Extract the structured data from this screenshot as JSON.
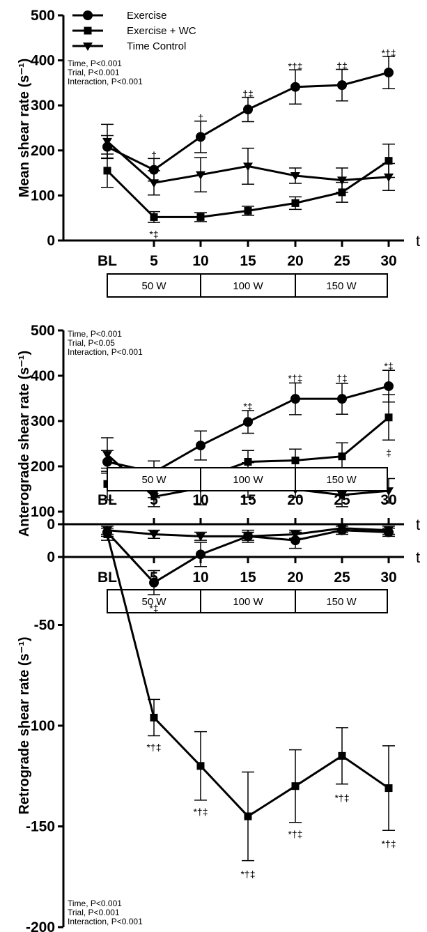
{
  "chart_data": [
    {
      "type": "line",
      "ylabel": "Mean shear rate (s⁻¹)",
      "xunit": "t",
      "ylim": [
        0,
        500
      ],
      "yticks": [
        0,
        100,
        200,
        300,
        400,
        500
      ],
      "categories": [
        "BL",
        "5",
        "10",
        "15",
        "20",
        "25",
        "30"
      ],
      "stats": [
        "Time, P<0.001",
        "Trial, P<0.001",
        "Interaction, P<0.001"
      ],
      "legend": {
        "placement": "top-left",
        "entries": [
          "Exercise",
          "Exercise + WC",
          "Time Control"
        ]
      },
      "stages": [
        "50 W",
        "100 W",
        "150 W"
      ],
      "stages_position": "below",
      "series": [
        {
          "name": "Exercise",
          "marker": "circle",
          "values": [
            208,
            157,
            230,
            291,
            341,
            345,
            373
          ],
          "err": [
            25,
            25,
            35,
            27,
            38,
            35,
            36
          ]
        },
        {
          "name": "Exercise + WC",
          "marker": "square",
          "values": [
            155,
            52,
            52,
            66,
            83,
            107,
            177
          ],
          "err": [
            37,
            12,
            10,
            10,
            14,
            22,
            37
          ]
        },
        {
          "name": "Time Control",
          "marker": "triangle-down",
          "values": [
            220,
            128,
            146,
            165,
            144,
            134,
            141
          ],
          "err": [
            38,
            27,
            38,
            40,
            17,
            27,
            30
          ]
        }
      ],
      "annotations": [
        {
          "x": "5",
          "y": 182,
          "text": "†"
        },
        {
          "x": "10",
          "y": 265,
          "text": "†"
        },
        {
          "x": "15",
          "y": 318,
          "text": "†‡"
        },
        {
          "x": "20",
          "y": 379,
          "text": "*†‡"
        },
        {
          "x": "25",
          "y": 380,
          "text": "†‡"
        },
        {
          "x": "30",
          "y": 409,
          "text": "*†‡"
        },
        {
          "x": "5",
          "y": 22,
          "text": "*‡",
          "below": true
        }
      ]
    },
    {
      "type": "line",
      "ylabel": "Anterograde shear rate (s⁻¹)",
      "xunit": "t",
      "ylim": [
        0,
        500
      ],
      "yticks": [
        0,
        100,
        200,
        300,
        400,
        500
      ],
      "categories": [
        "BL",
        "5",
        "10",
        "15",
        "20",
        "25",
        "30"
      ],
      "stats": [
        "Time, P<0.001",
        "Trial, P<0.05",
        "Interaction, P<0.001"
      ],
      "stages": [
        "50 W",
        "100 W",
        "150 W"
      ],
      "stages_position": "below",
      "series": [
        {
          "name": "Exercise",
          "marker": "circle",
          "values": [
            210,
            187,
            246,
            298,
            349,
            349,
            377
          ],
          "err": [
            25,
            25,
            32,
            25,
            35,
            34,
            35
          ]
        },
        {
          "name": "Exercise + WC",
          "marker": "square",
          "values": [
            161,
            148,
            173,
            210,
            213,
            222,
            308
          ],
          "err": [
            35,
            17,
            17,
            25,
            25,
            30,
            50
          ]
        },
        {
          "name": "Time Control",
          "marker": "triangle-down",
          "values": [
            226,
            133,
            152,
            170,
            149,
            137,
            146
          ],
          "err": [
            37,
            22,
            37,
            38,
            17,
            26,
            27
          ]
        }
      ],
      "annotations": [
        {
          "x": "15",
          "y": 325,
          "text": "*‡"
        },
        {
          "x": "20",
          "y": 387,
          "text": "*†‡"
        },
        {
          "x": "25",
          "y": 387,
          "text": "†‡"
        },
        {
          "x": "30",
          "y": 414,
          "text": "*‡"
        },
        {
          "x": "30",
          "y": 238,
          "text": "‡",
          "below": true
        }
      ]
    },
    {
      "type": "line",
      "ylabel": "Retrograde shear rate (s⁻¹)",
      "xunit": "t",
      "ylim": [
        -200,
        0
      ],
      "yticks": [
        -200,
        -150,
        -100,
        -50,
        0
      ],
      "categories": [
        "BL",
        "5",
        "10",
        "15",
        "20",
        "25",
        "30"
      ],
      "stats": [
        "Time, P<0.001",
        "Trial, P<0.001",
        "Interaction, P<0.001"
      ],
      "stages": [
        "50 W",
        "100 W",
        "150 W"
      ],
      "stages_position": "above",
      "series": [
        {
          "name": "Exercise",
          "marker": "circle",
          "values": [
            -4,
            -29,
            -15,
            -6,
            -8,
            -3,
            -4
          ],
          "err": [
            2,
            6,
            6,
            3,
            4,
            2,
            2
          ]
        },
        {
          "name": "Exercise + WC",
          "marker": "square",
          "values": [
            -5,
            -96,
            -120,
            -145,
            -130,
            -115,
            -131
          ],
          "err": [
            3,
            9,
            17,
            22,
            18,
            14,
            21
          ]
        },
        {
          "name": "Time Control",
          "marker": "triangle-down",
          "values": [
            -3,
            -5,
            -6,
            -6,
            -5,
            -2,
            -3
          ],
          "err": [
            2,
            2,
            2,
            2,
            2,
            2,
            2
          ]
        }
      ],
      "annotations": [
        {
          "x": "5",
          "y": -40,
          "text": "*‡",
          "below": true
        },
        {
          "x": "5",
          "y": -109,
          "text": "*†‡",
          "below": true
        },
        {
          "x": "10",
          "y": -141,
          "text": "*†‡",
          "below": true
        },
        {
          "x": "15",
          "y": -172,
          "text": "*†‡",
          "below": true
        },
        {
          "x": "20",
          "y": -152,
          "text": "*†‡",
          "below": true
        },
        {
          "x": "25",
          "y": -134,
          "text": "*†‡",
          "below": true
        },
        {
          "x": "30",
          "y": -157,
          "text": "*†‡",
          "below": true
        }
      ]
    }
  ]
}
